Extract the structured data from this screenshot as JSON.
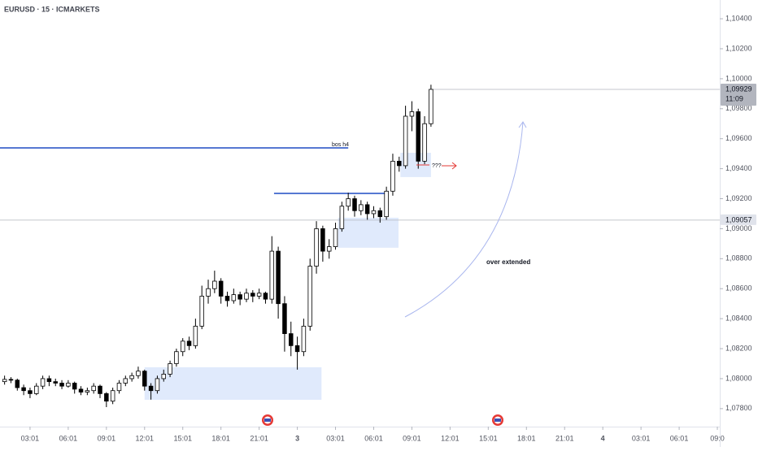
{
  "chart_data": {
    "type": "candlestick",
    "title": "EURUSD · 15 · ICMARKETS",
    "x": [
      1,
      1.5,
      2,
      2.5,
      3,
      3.5,
      4,
      4.5,
      5,
      5.5,
      6,
      6.5,
      7,
      7.5,
      8,
      8.5,
      9,
      9.5,
      10,
      10.5,
      11,
      11.5,
      12,
      12.5,
      13,
      13.5,
      14,
      14.5,
      15,
      15.5,
      16,
      16.5,
      17,
      17.5,
      18,
      18.5,
      19,
      19.5,
      20,
      20.5,
      21,
      21.5,
      22,
      22.5,
      23,
      23.5,
      24,
      24.5,
      25,
      25.5,
      26,
      26.5,
      27,
      27.5,
      28,
      28.5,
      29,
      29.5,
      30,
      30.5,
      31,
      31.5,
      32,
      32.5,
      33,
      33.5,
      34,
      34.5
    ],
    "open": [
      1.0798,
      1.07995,
      1.0799,
      1.0794,
      1.0792,
      1.079,
      1.0795,
      1.08,
      1.0798,
      1.0797,
      1.0795,
      1.0797,
      1.0793,
      1.0791,
      1.0792,
      1.0795,
      1.079,
      1.0785,
      1.0792,
      1.0797,
      1.08,
      1.0802,
      1.0805,
      1.0795,
      1.0792,
      1.08,
      1.0803,
      1.081,
      1.0818,
      1.0825,
      1.0822,
      1.0835,
      1.0855,
      1.086,
      1.0865,
      1.0855,
      1.0852,
      1.0856,
      1.0853,
      1.0857,
      1.0855,
      1.0857,
      1.0853,
      1.0885,
      1.085,
      1.083,
      1.0822,
      1.0818,
      1.0835,
      1.0875,
      1.09,
      1.0885,
      1.0888,
      1.09,
      1.0915,
      1.092,
      1.0912,
      1.0916,
      1.091,
      1.0912,
      1.0908,
      1.0925,
      1.0945,
      1.0942,
      1.0975,
      1.0978,
      1.0945,
      1.097
    ],
    "high": [
      1.0802,
      1.0801,
      1.08,
      1.0796,
      1.0794,
      1.0797,
      1.0802,
      1.0802,
      1.08,
      1.0799,
      1.0799,
      1.0798,
      1.0795,
      1.0794,
      1.0797,
      1.0796,
      1.0791,
      1.0794,
      1.0799,
      1.0802,
      1.0804,
      1.0808,
      1.0806,
      1.0797,
      1.0802,
      1.0806,
      1.0812,
      1.082,
      1.0827,
      1.0828,
      1.084,
      1.0862,
      1.0866,
      1.0872,
      1.0867,
      1.0858,
      1.086,
      1.0858,
      1.086,
      1.0859,
      1.086,
      1.0858,
      1.0895,
      1.0888,
      1.0855,
      1.0838,
      1.0828,
      1.084,
      1.088,
      1.0905,
      1.0902,
      1.0893,
      1.0904,
      1.0918,
      1.0924,
      1.0922,
      1.0919,
      1.0918,
      1.0915,
      1.0914,
      1.0928,
      1.095,
      1.0948,
      1.0982,
      1.0985,
      1.098,
      1.0975,
      1.0996
    ],
    "low": [
      1.0796,
      1.0797,
      1.0792,
      1.0789,
      1.0787,
      1.0789,
      1.0793,
      1.0795,
      1.0795,
      1.0793,
      1.0794,
      1.079,
      1.0789,
      1.0789,
      1.079,
      1.0787,
      1.0781,
      1.0783,
      1.079,
      1.0795,
      1.0798,
      1.08,
      1.0792,
      1.0786,
      1.079,
      1.0798,
      1.0801,
      1.0808,
      1.0815,
      1.0819,
      1.082,
      1.0833,
      1.085,
      1.0857,
      1.085,
      1.0848,
      1.085,
      1.0849,
      1.0851,
      1.0851,
      1.0853,
      1.085,
      1.085,
      1.084,
      1.0818,
      1.0815,
      1.0806,
      1.0815,
      1.0832,
      1.087,
      1.0878,
      1.088,
      1.0886,
      1.0898,
      1.0912,
      1.0908,
      1.0909,
      1.0906,
      1.0907,
      1.0904,
      1.0906,
      1.0922,
      1.0938,
      1.094,
      1.0965,
      1.094,
      1.0943,
      1.0968
    ],
    "close": [
      1.07995,
      1.0799,
      1.0794,
      1.0792,
      1.079,
      1.0795,
      1.08,
      1.0798,
      1.0797,
      1.0795,
      1.0797,
      1.0793,
      1.0791,
      1.0792,
      1.0795,
      1.079,
      1.0785,
      1.0792,
      1.0797,
      1.08,
      1.0802,
      1.0805,
      1.0795,
      1.0792,
      1.08,
      1.0803,
      1.081,
      1.0818,
      1.0825,
      1.0822,
      1.0835,
      1.0855,
      1.086,
      1.0865,
      1.0855,
      1.0852,
      1.0856,
      1.0853,
      1.0857,
      1.0855,
      1.0857,
      1.0853,
      1.0885,
      1.085,
      1.083,
      1.0822,
      1.0818,
      1.0835,
      1.0875,
      1.09,
      1.0885,
      1.0888,
      1.09,
      1.0915,
      1.092,
      1.0912,
      1.0916,
      1.091,
      1.0912,
      1.0908,
      1.0925,
      1.0945,
      1.0942,
      1.0975,
      1.0978,
      1.0945,
      1.097,
      1.09929
    ],
    "up_color": "#ffffff",
    "down_color": "#000000",
    "xlim": [
      0.64,
      57.19
    ],
    "xticks": [
      {
        "value": 3,
        "label": "03:01"
      },
      {
        "value": 6,
        "label": "06:01"
      },
      {
        "value": 9,
        "label": "09:01"
      },
      {
        "value": 12,
        "label": "12:01"
      },
      {
        "value": 15,
        "label": "15:01"
      },
      {
        "value": 18,
        "label": "18:01"
      },
      {
        "value": 21,
        "label": "21:01"
      },
      {
        "value": 24,
        "label": "3"
      },
      {
        "value": 27,
        "label": "03:01"
      },
      {
        "value": 30,
        "label": "06:01"
      },
      {
        "value": 33,
        "label": "09:01"
      },
      {
        "value": 36,
        "label": "12:01"
      },
      {
        "value": 39,
        "label": "15:01"
      },
      {
        "value": 42,
        "label": "18:01"
      },
      {
        "value": 45,
        "label": "21:01"
      },
      {
        "value": 48,
        "label": "4"
      },
      {
        "value": 51,
        "label": "03:01"
      },
      {
        "value": 54,
        "label": "06:01"
      },
      {
        "value": 57,
        "label": "09:0"
      }
    ],
    "ylim": [
      1.0768,
      1.10525
    ],
    "yticks": [
      {
        "value": 1.078,
        "label": "1,07800"
      },
      {
        "value": 1.08,
        "label": "1,08000"
      },
      {
        "value": 1.082,
        "label": "1,08200"
      },
      {
        "value": 1.084,
        "label": "1,08400"
      },
      {
        "value": 1.086,
        "label": "1,08600"
      },
      {
        "value": 1.088,
        "label": "1,08800"
      },
      {
        "value": 1.09,
        "label": "1,09000"
      },
      {
        "value": 1.092,
        "label": "1,09200"
      },
      {
        "value": 1.094,
        "label": "1,09400"
      },
      {
        "value": 1.096,
        "label": "1,09600"
      },
      {
        "value": 1.098,
        "label": "1,09800"
      },
      {
        "value": 1.1,
        "label": "1,10000"
      },
      {
        "value": 1.102,
        "label": "1,10200"
      },
      {
        "value": 1.104,
        "label": "1,10400"
      }
    ],
    "zones": [
      {
        "x0": 12.0,
        "x1": 25.9,
        "y0": 1.07859,
        "y1": 1.08076
      },
      {
        "x0": 27.2,
        "x1": 31.95,
        "y0": 1.08873,
        "y1": 1.09073
      },
      {
        "x0": 32.1,
        "x1": 34.5,
        "y0": 1.09344,
        "y1": 1.09506
      }
    ],
    "levels": [
      {
        "x0": 0.64,
        "x1": 28.0,
        "value": 1.09539
      },
      {
        "x0": 22.17,
        "x1": 31.12,
        "value": 1.09235
      }
    ],
    "price_lines": [
      {
        "value": 1.09929,
        "label": "1,09929",
        "countdown": "11:09"
      },
      {
        "value": 1.09057,
        "label": "1,09057"
      }
    ],
    "annotations": {
      "bos": "bos h4",
      "question": "???",
      "note": "over extended"
    }
  }
}
